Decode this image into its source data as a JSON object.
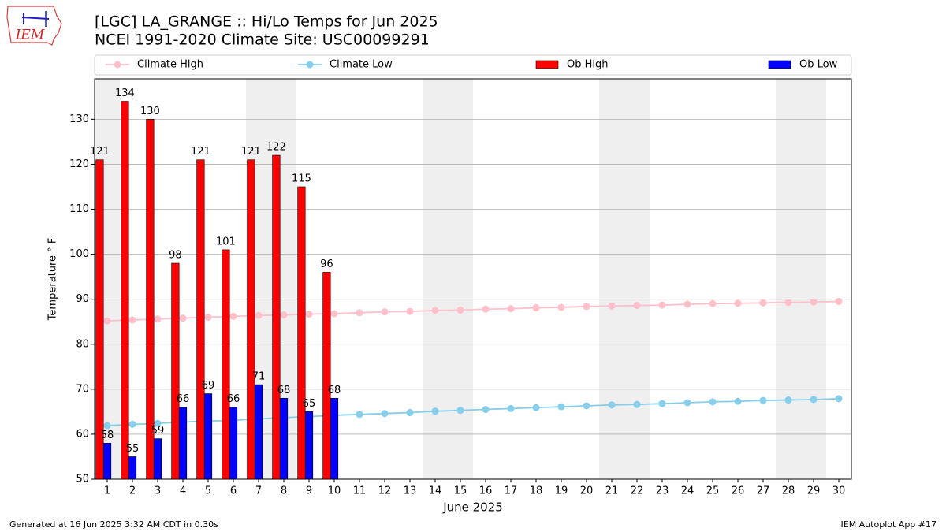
{
  "logo_text": "IEM",
  "footer_left": "Generated at 16 Jun 2025 3:32 AM CDT in 0.30s",
  "footer_right": "IEM Autoplot App #17",
  "chart_data": {
    "type": "bar",
    "title": "[LGC] LA_GRANGE :: Hi/Lo Temps for Jun 2025",
    "subtitle": "NCEI 1991-2020 Climate Site: USC00099291",
    "x_label": "June 2025",
    "y_label": "Temperature ° F",
    "x": [
      1,
      2,
      3,
      4,
      5,
      6,
      7,
      8,
      9,
      10,
      11,
      12,
      13,
      14,
      15,
      16,
      17,
      18,
      19,
      20,
      21,
      22,
      23,
      24,
      25,
      26,
      27,
      28,
      29,
      30
    ],
    "xlim": [
      0.5,
      30.5
    ],
    "xticks": [
      1,
      2,
      3,
      4,
      5,
      6,
      7,
      8,
      9,
      10,
      11,
      12,
      13,
      14,
      15,
      16,
      17,
      18,
      19,
      20,
      21,
      22,
      23,
      24,
      25,
      26,
      27,
      28,
      29,
      30
    ],
    "ylim": [
      50,
      139
    ],
    "yticks": [
      50,
      60,
      70,
      80,
      90,
      100,
      110,
      120,
      130
    ],
    "grid": true,
    "shaded_days": [
      1,
      7,
      8,
      14,
      15,
      21,
      22,
      28,
      29
    ],
    "legend": "top",
    "series": [
      {
        "name": "Climate High",
        "type": "line",
        "color": "#ffc0cb",
        "values": [
          85.2,
          85.4,
          85.6,
          85.8,
          86.0,
          86.2,
          86.4,
          86.5,
          86.7,
          86.8,
          87.0,
          87.2,
          87.3,
          87.5,
          87.6,
          87.8,
          87.9,
          88.1,
          88.2,
          88.4,
          88.5,
          88.6,
          88.7,
          88.9,
          89.0,
          89.1,
          89.2,
          89.3,
          89.4,
          89.5
        ]
      },
      {
        "name": "Climate Low",
        "type": "line",
        "color": "#87ceeb",
        "values": [
          61.9,
          62.2,
          62.4,
          62.7,
          62.9,
          63.1,
          63.4,
          63.7,
          63.9,
          64.2,
          64.4,
          64.6,
          64.8,
          65.1,
          65.3,
          65.5,
          65.7,
          65.9,
          66.1,
          66.3,
          66.5,
          66.6,
          66.8,
          67.0,
          67.2,
          67.3,
          67.5,
          67.6,
          67.7,
          67.9
        ]
      },
      {
        "name": "Ob High",
        "type": "bar",
        "color": "#ff0000",
        "values": [
          121,
          134,
          130,
          98,
          121,
          101,
          121,
          122,
          115,
          96,
          null,
          null,
          null,
          null,
          null,
          null,
          null,
          null,
          null,
          null,
          null,
          null,
          null,
          null,
          null,
          null,
          null,
          null,
          null,
          null
        ]
      },
      {
        "name": "Ob Low",
        "type": "bar",
        "color": "#0000ff",
        "values": [
          58,
          55,
          59,
          66,
          69,
          66,
          71,
          68,
          65,
          68,
          null,
          null,
          null,
          null,
          null,
          null,
          null,
          null,
          null,
          null,
          null,
          null,
          null,
          null,
          null,
          null,
          null,
          null,
          null,
          null
        ]
      }
    ]
  }
}
